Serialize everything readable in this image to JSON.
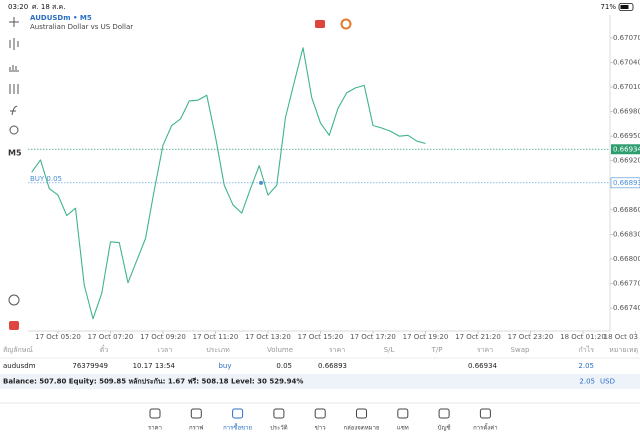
{
  "status_bar": {
    "time": "03:20",
    "date": "ศ. 18 ส.ค.",
    "battery": "71%"
  },
  "symbol": {
    "title": "AUDUSDm • M5",
    "description": "Australian Dollar vs US Dollar"
  },
  "toolbar": {
    "timeframe": "M5"
  },
  "chart_data": {
    "type": "line",
    "color": "#3fb58a",
    "categories": [
      null,
      null,
      null,
      "17 Oct 05:20",
      null,
      null,
      null,
      null,
      null,
      "17 Oct 07:20",
      null,
      null,
      null,
      null,
      null,
      "17 Oct 09:20",
      null,
      null,
      null,
      null,
      null,
      "17 Oct 11:20",
      null,
      null,
      null,
      null,
      null,
      "17 Oct 13:20",
      null,
      null,
      null,
      null,
      null,
      "17 Oct 15:20",
      null,
      null,
      null,
      null,
      null,
      "17 Oct 17:20",
      null,
      null,
      null,
      null,
      null,
      "17 Oct 19:20",
      null,
      null,
      null,
      null,
      null,
      "17 Oct 21:20",
      null,
      null,
      null,
      null,
      null,
      "17 Oct 23:20",
      null,
      null,
      null,
      null,
      null,
      "18 Oct 01:20",
      null,
      null,
      null,
      null,
      null,
      "18 Oct 03"
    ],
    "values": [
      0.66906,
      0.66921,
      0.66886,
      0.66878,
      0.66853,
      0.66862,
      0.66768,
      0.66727,
      0.66758,
      0.66821,
      0.6682,
      0.66771,
      0.66798,
      0.66825,
      0.66884,
      0.66939,
      0.66963,
      0.66971,
      0.66993,
      0.66994,
      0.67,
      0.66949,
      0.6689,
      0.66866,
      0.66856,
      0.66886,
      0.66914,
      0.66878,
      0.6689,
      0.66973,
      0.67016,
      0.67058,
      0.66997,
      0.66966,
      0.66951,
      0.66984,
      0.67003,
      0.67009,
      0.67012,
      0.66963,
      0.6696,
      0.66956,
      0.6695,
      0.66951,
      0.66944,
      0.66941,
      null,
      null,
      null,
      null,
      null,
      null,
      null,
      null,
      null,
      null,
      null,
      null,
      null,
      null,
      null,
      null,
      null,
      null,
      null,
      null,
      null,
      null,
      null,
      null
    ],
    "ylim": [
      0.66712,
      0.67098
    ],
    "yticks": [
      {
        "value": 0.6707,
        "label": "0.67070"
      },
      {
        "value": 0.6704,
        "label": "0.67040"
      },
      {
        "value": 0.6701,
        "label": "0.67010"
      },
      {
        "value": 0.6698,
        "label": "0.66980"
      },
      {
        "value": 0.6695,
        "label": "0.66950"
      },
      {
        "value": 0.6692,
        "label": "0.66920"
      },
      {
        "value": 0.6686,
        "label": "0.66860"
      },
      {
        "value": 0.6683,
        "label": "0.66830"
      },
      {
        "value": 0.668,
        "label": "0.66800"
      },
      {
        "value": 0.6677,
        "label": "0.66770"
      },
      {
        "value": 0.6674,
        "label": "0.66740"
      }
    ],
    "grid": false,
    "last_price": 0.66934,
    "last_price_color": "#2e9e6f",
    "order_price": 0.66893,
    "order_label": "BUY 0.05",
    "order_color": "#4a8fd8"
  },
  "trades": {
    "headers": [
      "สัญลักษณ์",
      "ตั๋ว",
      "เวลา",
      "ประเภท",
      "Volume",
      "ราคา",
      "S/L",
      "T/P",
      "ราคา",
      "Swap",
      "กำไร",
      "หมายเหตุ"
    ],
    "row": {
      "symbol": "audusdm",
      "ticket": "76379949",
      "time": "10.17 13:54",
      "type": "buy",
      "volume": "0.05",
      "open_price": "0.66893",
      "current_price": "0.66934",
      "profit": "2.05"
    }
  },
  "summary": {
    "text": "Balance: 507.80 Equity: 509.85 หลักประกัน: 1.67 ฟรี: 508.18 Level: 30 529.94%",
    "profit": "2.05",
    "currency": "USD"
  },
  "nav": {
    "items": [
      {
        "label": "ราคา"
      },
      {
        "label": "กราฟ"
      },
      {
        "label": "การซื้อขาย",
        "selected": true
      },
      {
        "label": "ประวัติ"
      },
      {
        "label": "ข่าว"
      },
      {
        "label": "กล่องจดหมาย"
      },
      {
        "label": "แชท"
      },
      {
        "label": "บัญชี"
      },
      {
        "label": "การตั้งค่า"
      }
    ]
  }
}
